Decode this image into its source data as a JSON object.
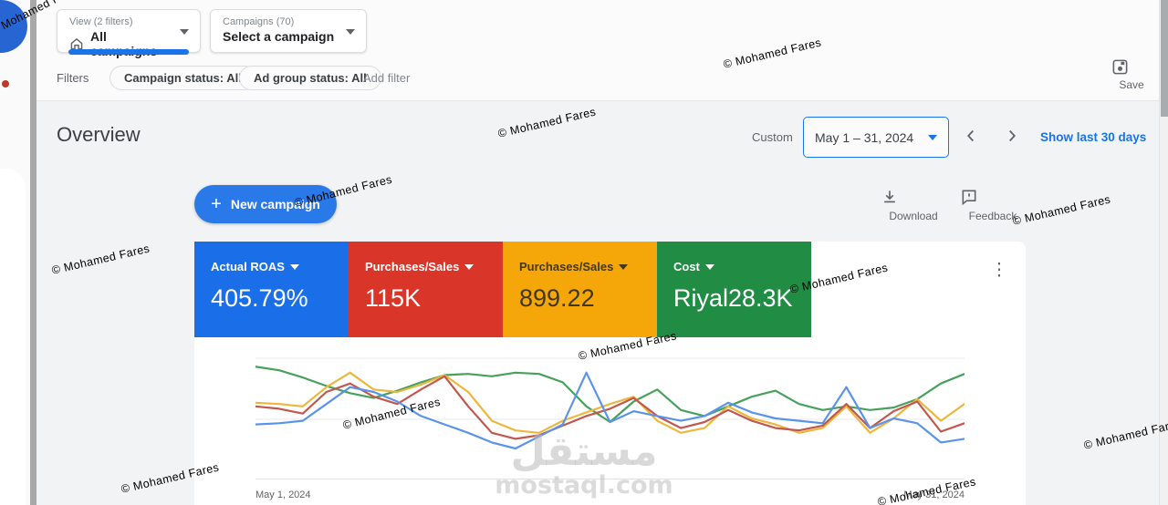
{
  "colors": {
    "accent": "#1a73e8",
    "topbar_bg": "#fbfbfc",
    "content_bg": "#f2f3f5"
  },
  "toolbar": {
    "view_selector": {
      "label": "View (2 filters)",
      "value": "All campaigns",
      "icon": "home-icon"
    },
    "campaign_selector": {
      "label": "Campaigns (70)",
      "value": "Select a campaign"
    },
    "save_label": "Save"
  },
  "filters": {
    "title": "Filters",
    "chips": [
      "Campaign status: All",
      "Ad group status: All"
    ],
    "add_label": "Add filter"
  },
  "header": {
    "title": "Overview",
    "range_type": "Custom",
    "date_range": "May 1 – 31, 2024",
    "show_last": "Show last 30 days"
  },
  "actions": {
    "new_campaign": "New campaign",
    "plus": "+",
    "download": "Download",
    "feedback": "Feedback",
    "kebab": "⋮"
  },
  "scorecards": [
    {
      "label": "Actual ROAS",
      "value": "405.79%",
      "color": "#1a6fe8",
      "text": "#ffffff"
    },
    {
      "label": "Purchases/Sales",
      "value": "115K",
      "color": "#d93528",
      "text": "#ffffff"
    },
    {
      "label": "Purchases/Sales",
      "value": "899.22",
      "color": "#f5a70a",
      "text": "#423719"
    },
    {
      "label": "Cost",
      "value": "Riyal28.3K",
      "color": "#218c44",
      "text": "#ffffff"
    }
  ],
  "chart_data": {
    "type": "line",
    "title": "",
    "xlabel": "",
    "ylabel": "",
    "x_start_label": "May 1, 2024",
    "x_end_label": "May 31, 2024",
    "points": 31,
    "ylim": [
      0,
      100
    ],
    "grid": "horizontal",
    "legend": "none",
    "series": [
      {
        "name": "Cost",
        "color": "#47a15c",
        "values": [
          93,
          90,
          84,
          77,
          71,
          67,
          73,
          80,
          86,
          87,
          85,
          88,
          87,
          80,
          60,
          47,
          64,
          74,
          57,
          52,
          60,
          68,
          73,
          62,
          57,
          60,
          57,
          59,
          66,
          79,
          87
        ]
      },
      {
        "name": "Purchases/Sales (value)",
        "color": "#edb73e",
        "values": [
          63,
          62,
          60,
          76,
          88,
          74,
          72,
          78,
          86,
          72,
          48,
          40,
          38,
          48,
          55,
          62,
          68,
          48,
          38,
          42,
          60,
          50,
          45,
          38,
          42,
          60,
          38,
          50,
          66,
          48,
          62
        ]
      },
      {
        "name": "Purchases/Sales",
        "color": "#c2574d",
        "values": [
          60,
          58,
          54,
          72,
          79,
          68,
          62,
          74,
          85,
          60,
          38,
          33,
          36,
          44,
          52,
          58,
          67,
          52,
          42,
          47,
          57,
          48,
          42,
          40,
          44,
          62,
          42,
          56,
          64,
          39,
          46
        ]
      },
      {
        "name": "Actual ROAS",
        "color": "#5b93ea",
        "values": [
          45,
          46,
          48,
          62,
          76,
          72,
          64,
          52,
          45,
          38,
          30,
          25,
          35,
          45,
          88,
          47,
          56,
          52,
          48,
          52,
          63,
          55,
          50,
          48,
          46,
          76,
          42,
          50,
          46,
          30,
          33
        ]
      }
    ]
  },
  "watermark": {
    "credit": "© Mohamed Fares",
    "brand_ar": "مستقل",
    "brand_domain": "mostaql.com"
  }
}
